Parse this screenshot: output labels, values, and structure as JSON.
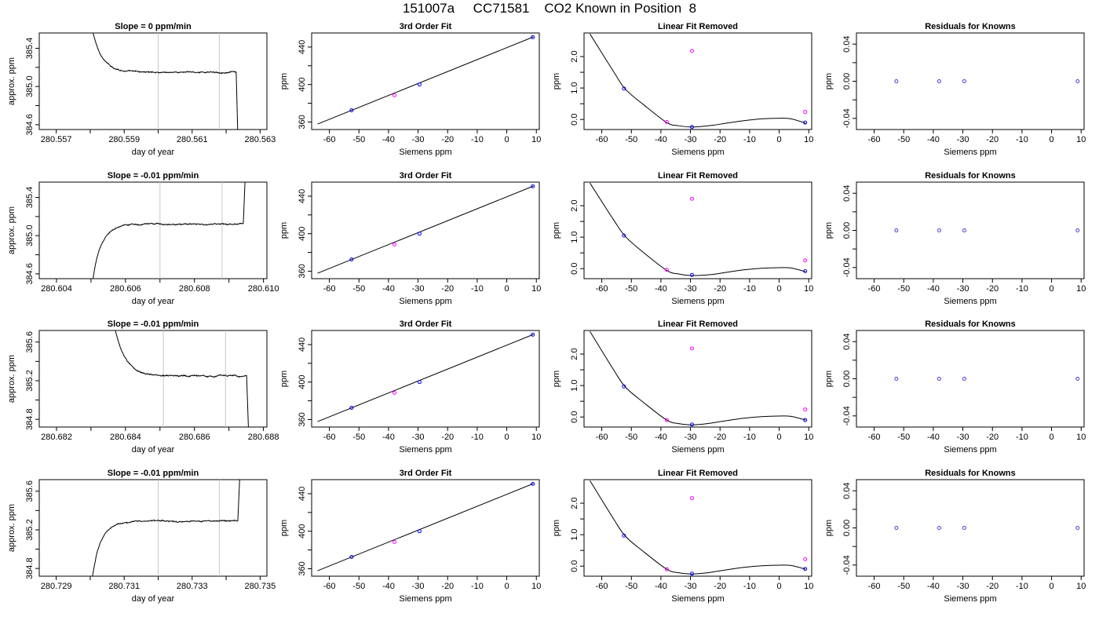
{
  "page_title": "151007a     CC71581    CO2 Known in Position  8",
  "colors": {
    "axis": "#000000",
    "curve": "#000000",
    "window_lines": "#c8c8c8",
    "known_points": "#0000ff",
    "other_points": "#ff00ff"
  },
  "chart_data": [
    {
      "row": 1,
      "type": "line",
      "title": "Slope =  0  ppm/min",
      "xlabel": "day of year",
      "ylabel": "approx. ppm",
      "xlim": [
        280.5565,
        280.5632
      ],
      "ylim": [
        384.55,
        385.56
      ],
      "xticks": [
        280.557,
        280.558,
        280.559,
        280.56,
        280.561,
        280.562,
        280.563
      ],
      "xtick_labels": [
        "280.557",
        "",
        "280.559",
        "",
        "280.561",
        "",
        "280.563"
      ],
      "yticks": [
        384.6,
        384.8,
        385.0,
        385.2,
        385.4
      ],
      "ytick_labels": [
        "384.6",
        "",
        "385.0",
        "",
        "385.4"
      ],
      "window_lines": [
        280.56,
        280.5618
      ],
      "trace": {
        "t_start": 280.558,
        "t_flat": 280.5589,
        "t_end": 280.5623,
        "t_drop": 280.56235,
        "start_value": 385.7,
        "level": 385.15,
        "end_value": 384.4,
        "noise": 0.012
      }
    },
    {
      "row": 1,
      "type": "scatter",
      "title": "3rd Order Fit",
      "xlabel": "Siemens ppm",
      "ylabel": "ppm",
      "xlim": [
        -66,
        11
      ],
      "ylim": [
        352,
        455
      ],
      "xticks": [
        -60,
        -50,
        -40,
        -30,
        -20,
        -10,
        0,
        10
      ],
      "yticks": [
        360,
        380,
        400,
        420,
        440
      ],
      "ytick_labels": [
        "360",
        "",
        "400",
        "",
        "440"
      ],
      "fit_line": {
        "x": [
          -64,
          9
        ],
        "y": [
          357.8,
          450.8
        ]
      },
      "points": [
        {
          "x": -52.5,
          "y": 372.5,
          "color": "#0000ff"
        },
        {
          "x": -38.0,
          "y": 388.5,
          "color": "#ff00ff"
        },
        {
          "x": -29.5,
          "y": 400.0,
          "color": "#0000ff"
        },
        {
          "x": 8.8,
          "y": 450.5,
          "color": "#0000ff"
        }
      ]
    },
    {
      "row": 1,
      "type": "scatter",
      "title": "Linear Fit Removed",
      "xlabel": "Siemens ppm",
      "ylabel": "ppm",
      "xlim": [
        -66,
        11
      ],
      "ylim": [
        -0.32,
        2.75
      ],
      "xticks": [
        -60,
        -50,
        -40,
        -30,
        -20,
        -10,
        0,
        10
      ],
      "yticks": [
        0.0,
        0.5,
        1.0,
        1.5,
        2.0
      ],
      "ytick_labels": [
        "0.0",
        "",
        "1.0",
        "",
        "2.0"
      ],
      "curve_x": [
        -64,
        -56,
        -52,
        -46,
        -38,
        -34,
        -30,
        -26,
        -22,
        -18,
        -12,
        -6,
        0,
        4,
        9
      ],
      "curve_y": [
        2.72,
        1.52,
        0.96,
        0.48,
        -0.1,
        -0.2,
        -0.24,
        -0.22,
        -0.18,
        -0.12,
        -0.04,
        0.02,
        0.04,
        0.02,
        -0.12
      ],
      "points": [
        {
          "x": -52.5,
          "y": 0.98,
          "color": "#0000ff"
        },
        {
          "x": -38.0,
          "y": -0.08,
          "color": "#ff00ff"
        },
        {
          "x": -29.5,
          "y": -0.24,
          "color": "#0000ff"
        },
        {
          "x": -29.5,
          "y": 2.18,
          "color": "#ff00ff"
        },
        {
          "x": 8.8,
          "y": 0.24,
          "color": "#ff00ff"
        },
        {
          "x": 8.8,
          "y": -0.1,
          "color": "#0000ff"
        }
      ]
    },
    {
      "row": 1,
      "type": "scatter",
      "title": "Residuals for Knowns",
      "xlabel": "Siemens ppm",
      "ylabel": "ppm",
      "xlim": [
        -66,
        11
      ],
      "ylim": [
        -0.052,
        0.052
      ],
      "xticks": [
        -60,
        -50,
        -40,
        -30,
        -20,
        -10,
        0,
        10
      ],
      "yticks": [
        -0.04,
        -0.02,
        0.0,
        0.02,
        0.04
      ],
      "ytick_labels": [
        "-0.04",
        "",
        "0.00",
        "",
        "0.04"
      ],
      "points": [
        {
          "x": -52.5,
          "y": 0.0,
          "color": "#4b3bd8"
        },
        {
          "x": -38.0,
          "y": 0.0,
          "color": "#4b3bd8"
        },
        {
          "x": -29.5,
          "y": 0.0,
          "color": "#4b3bd8"
        },
        {
          "x": 8.8,
          "y": 0.0,
          "color": "#4b3bd8"
        }
      ]
    },
    {
      "row": 2,
      "type": "line",
      "title": "Slope =  -0.01  ppm/min",
      "xlabel": "day of year",
      "ylabel": "approx. ppm",
      "xlim": [
        280.6035,
        280.6101
      ],
      "ylim": [
        384.55,
        385.56
      ],
      "xticks": [
        280.604,
        280.605,
        280.606,
        280.607,
        280.608,
        280.609,
        280.61
      ],
      "xtick_labels": [
        "280.604",
        "",
        "280.606",
        "",
        "280.608",
        "",
        "280.610"
      ],
      "yticks": [
        384.6,
        384.8,
        385.0,
        385.2,
        385.4
      ],
      "ytick_labels": [
        "384.6",
        "",
        "385.0",
        "",
        "385.4"
      ],
      "window_lines": [
        280.607,
        280.6088
      ],
      "trace": {
        "t_start": 280.605,
        "t_flat": 280.6058,
        "t_end": 280.60942,
        "t_drop": 280.60948,
        "start_value": 384.4,
        "level": 385.12,
        "end_value": 385.7,
        "noise": 0.012
      }
    },
    {
      "row": 2,
      "type": "scatter",
      "title": "3rd Order Fit",
      "xlabel": "Siemens ppm",
      "ylabel": "ppm",
      "xlim": [
        -66,
        11
      ],
      "ylim": [
        352,
        455
      ],
      "xticks": [
        -60,
        -50,
        -40,
        -30,
        -20,
        -10,
        0,
        10
      ],
      "yticks": [
        360,
        380,
        400,
        420,
        440
      ],
      "ytick_labels": [
        "360",
        "",
        "400",
        "",
        "440"
      ],
      "fit_line": {
        "x": [
          -64,
          9
        ],
        "y": [
          357.8,
          450.8
        ]
      },
      "points": [
        {
          "x": -52.5,
          "y": 372.5,
          "color": "#0000ff"
        },
        {
          "x": -38.0,
          "y": 388.5,
          "color": "#ff00ff"
        },
        {
          "x": -29.5,
          "y": 400.0,
          "color": "#0000ff"
        },
        {
          "x": 8.8,
          "y": 450.5,
          "color": "#0000ff"
        }
      ]
    },
    {
      "row": 2,
      "type": "scatter",
      "title": "Linear Fit Removed",
      "xlabel": "Siemens ppm",
      "ylabel": "ppm",
      "xlim": [
        -66,
        11
      ],
      "ylim": [
        -0.32,
        2.75
      ],
      "xticks": [
        -60,
        -50,
        -40,
        -30,
        -20,
        -10,
        0,
        10
      ],
      "yticks": [
        0.0,
        0.5,
        1.0,
        1.5,
        2.0
      ],
      "ytick_labels": [
        "0.0",
        "",
        "1.0",
        "",
        "2.0"
      ],
      "curve_x": [
        -64,
        -56,
        -52,
        -46,
        -38,
        -34,
        -30,
        -26,
        -22,
        -18,
        -12,
        -6,
        0,
        4,
        9
      ],
      "curve_y": [
        2.72,
        1.55,
        1.02,
        0.52,
        -0.06,
        -0.17,
        -0.22,
        -0.21,
        -0.18,
        -0.12,
        -0.04,
        0.01,
        0.03,
        0.02,
        -0.1
      ],
      "points": [
        {
          "x": -52.5,
          "y": 1.05,
          "color": "#0000ff"
        },
        {
          "x": -38.0,
          "y": -0.04,
          "color": "#ff00ff"
        },
        {
          "x": -29.5,
          "y": -0.2,
          "color": "#0000ff"
        },
        {
          "x": -29.5,
          "y": 2.22,
          "color": "#ff00ff"
        },
        {
          "x": 8.8,
          "y": 0.26,
          "color": "#ff00ff"
        },
        {
          "x": 8.8,
          "y": -0.08,
          "color": "#0000ff"
        }
      ]
    },
    {
      "row": 2,
      "type": "scatter",
      "title": "Residuals for Knowns",
      "xlabel": "Siemens ppm",
      "ylabel": "ppm",
      "xlim": [
        -66,
        11
      ],
      "ylim": [
        -0.052,
        0.052
      ],
      "xticks": [
        -60,
        -50,
        -40,
        -30,
        -20,
        -10,
        0,
        10
      ],
      "yticks": [
        -0.04,
        -0.02,
        0.0,
        0.02,
        0.04
      ],
      "ytick_labels": [
        "-0.04",
        "",
        "0.00",
        "",
        "0.04"
      ],
      "points": [
        {
          "x": -52.5,
          "y": 0.0,
          "color": "#4b3bd8"
        },
        {
          "x": -38.0,
          "y": 0.0,
          "color": "#4b3bd8"
        },
        {
          "x": -29.5,
          "y": 0.0,
          "color": "#4b3bd8"
        },
        {
          "x": 8.8,
          "y": 0.0,
          "color": "#4b3bd8"
        }
      ]
    },
    {
      "row": 3,
      "type": "line",
      "title": "Slope =  -0.01  ppm/min",
      "xlabel": "day of year",
      "ylabel": "approx. ppm",
      "xlim": [
        280.6815,
        280.6881
      ],
      "ylim": [
        384.72,
        385.72
      ],
      "xticks": [
        280.682,
        280.683,
        280.684,
        280.685,
        280.686,
        280.687,
        280.688
      ],
      "xtick_labels": [
        "280.682",
        "",
        "280.684",
        "",
        "280.686",
        "",
        "280.688"
      ],
      "yticks": [
        384.8,
        385.0,
        385.2,
        385.4,
        385.6
      ],
      "ytick_labels": [
        "384.8",
        "",
        "385.2",
        "",
        "385.6"
      ],
      "window_lines": [
        280.6851,
        280.6869
      ],
      "trace": {
        "t_start": 280.6836,
        "t_flat": 280.6846,
        "t_end": 280.68752,
        "t_drop": 280.68758,
        "start_value": 385.9,
        "level": 385.25,
        "end_value": 384.55,
        "noise": 0.013
      }
    },
    {
      "row": 3,
      "type": "scatter",
      "title": "3rd Order Fit",
      "xlabel": "Siemens ppm",
      "ylabel": "ppm",
      "xlim": [
        -66,
        11
      ],
      "ylim": [
        352,
        455
      ],
      "xticks": [
        -60,
        -50,
        -40,
        -30,
        -20,
        -10,
        0,
        10
      ],
      "yticks": [
        360,
        380,
        400,
        420,
        440
      ],
      "ytick_labels": [
        "360",
        "",
        "400",
        "",
        "440"
      ],
      "fit_line": {
        "x": [
          -64,
          9
        ],
        "y": [
          357.8,
          450.8
        ]
      },
      "points": [
        {
          "x": -52.5,
          "y": 372.5,
          "color": "#0000ff"
        },
        {
          "x": -38.0,
          "y": 388.5,
          "color": "#ff00ff"
        },
        {
          "x": -29.5,
          "y": 400.0,
          "color": "#0000ff"
        },
        {
          "x": 8.8,
          "y": 450.5,
          "color": "#0000ff"
        }
      ]
    },
    {
      "row": 3,
      "type": "scatter",
      "title": "Linear Fit Removed",
      "xlabel": "Siemens ppm",
      "ylabel": "ppm",
      "xlim": [
        -66,
        11
      ],
      "ylim": [
        -0.32,
        2.75
      ],
      "xticks": [
        -60,
        -50,
        -40,
        -30,
        -20,
        -10,
        0,
        10
      ],
      "yticks": [
        0.0,
        0.5,
        1.0,
        1.5,
        2.0
      ],
      "ytick_labels": [
        "0.0",
        "",
        "1.0",
        "",
        "2.0"
      ],
      "curve_x": [
        -64,
        -56,
        -52,
        -46,
        -38,
        -34,
        -30,
        -26,
        -22,
        -18,
        -12,
        -6,
        0,
        4,
        9
      ],
      "curve_y": [
        2.72,
        1.5,
        0.95,
        0.47,
        -0.1,
        -0.21,
        -0.25,
        -0.23,
        -0.18,
        -0.12,
        -0.04,
        0.01,
        0.03,
        0.02,
        -0.1
      ],
      "points": [
        {
          "x": -52.5,
          "y": 0.97,
          "color": "#0000ff"
        },
        {
          "x": -38.0,
          "y": -0.1,
          "color": "#ff00ff"
        },
        {
          "x": -29.5,
          "y": -0.24,
          "color": "#0000ff"
        },
        {
          "x": -29.5,
          "y": 2.18,
          "color": "#ff00ff"
        },
        {
          "x": 8.8,
          "y": 0.24,
          "color": "#ff00ff"
        },
        {
          "x": 8.8,
          "y": -0.1,
          "color": "#0000ff"
        }
      ]
    },
    {
      "row": 3,
      "type": "scatter",
      "title": "Residuals for Knowns",
      "xlabel": "Siemens ppm",
      "ylabel": "ppm",
      "xlim": [
        -66,
        11
      ],
      "ylim": [
        -0.052,
        0.052
      ],
      "xticks": [
        -60,
        -50,
        -40,
        -30,
        -20,
        -10,
        0,
        10
      ],
      "yticks": [
        -0.04,
        -0.02,
        0.0,
        0.02,
        0.04
      ],
      "ytick_labels": [
        "-0.04",
        "",
        "0.00",
        "",
        "0.04"
      ],
      "points": [
        {
          "x": -52.5,
          "y": 0.0,
          "color": "#4b3bd8"
        },
        {
          "x": -38.0,
          "y": 0.0,
          "color": "#4b3bd8"
        },
        {
          "x": -29.5,
          "y": 0.0,
          "color": "#4b3bd8"
        },
        {
          "x": 8.8,
          "y": 0.0,
          "color": "#4b3bd8"
        }
      ]
    },
    {
      "row": 4,
      "type": "line",
      "title": "Slope =  -0.01  ppm/min",
      "xlabel": "day of year",
      "ylabel": "approx. ppm",
      "xlim": [
        280.7285,
        280.7352
      ],
      "ylim": [
        384.72,
        385.72
      ],
      "xticks": [
        280.729,
        280.73,
        280.731,
        280.732,
        280.733,
        280.734,
        280.735
      ],
      "xtick_labels": [
        "280.729",
        "",
        "280.731",
        "",
        "280.733",
        "",
        "280.735"
      ],
      "yticks": [
        384.8,
        385.0,
        385.2,
        385.4,
        385.6
      ],
      "ytick_labels": [
        "384.8",
        "",
        "385.2",
        "",
        "385.6"
      ],
      "window_lines": [
        280.732,
        280.7338
      ],
      "trace": {
        "t_start": 280.73,
        "t_flat": 280.7308,
        "t_end": 280.73435,
        "t_drop": 280.73442,
        "start_value": 384.55,
        "level": 385.29,
        "end_value": 385.9,
        "noise": 0.012
      }
    },
    {
      "row": 4,
      "type": "scatter",
      "title": "3rd Order Fit",
      "xlabel": "Siemens ppm",
      "ylabel": "ppm",
      "xlim": [
        -66,
        11
      ],
      "ylim": [
        352,
        455
      ],
      "xticks": [
        -60,
        -50,
        -40,
        -30,
        -20,
        -10,
        0,
        10
      ],
      "yticks": [
        360,
        380,
        400,
        420,
        440
      ],
      "ytick_labels": [
        "360",
        "",
        "400",
        "",
        "440"
      ],
      "fit_line": {
        "x": [
          -64,
          9
        ],
        "y": [
          357.8,
          450.8
        ]
      },
      "points": [
        {
          "x": -52.5,
          "y": 372.5,
          "color": "#0000ff"
        },
        {
          "x": -38.0,
          "y": 388.5,
          "color": "#ff00ff"
        },
        {
          "x": -29.5,
          "y": 400.0,
          "color": "#0000ff"
        },
        {
          "x": 8.8,
          "y": 450.5,
          "color": "#0000ff"
        }
      ]
    },
    {
      "row": 4,
      "type": "scatter",
      "title": "Linear Fit Removed",
      "xlabel": "Siemens ppm",
      "ylabel": "ppm",
      "xlim": [
        -66,
        11
      ],
      "ylim": [
        -0.32,
        2.75
      ],
      "xticks": [
        -60,
        -50,
        -40,
        -30,
        -20,
        -10,
        0,
        10
      ],
      "yticks": [
        0.0,
        0.5,
        1.0,
        1.5,
        2.0
      ],
      "ytick_labels": [
        "0.0",
        "",
        "1.0",
        "",
        "2.0"
      ],
      "curve_x": [
        -64,
        -56,
        -52,
        -46,
        -38,
        -34,
        -30,
        -26,
        -22,
        -18,
        -12,
        -6,
        0,
        4,
        9
      ],
      "curve_y": [
        2.72,
        1.5,
        0.95,
        0.47,
        -0.1,
        -0.21,
        -0.25,
        -0.23,
        -0.18,
        -0.12,
        -0.04,
        0.01,
        0.03,
        0.02,
        -0.1
      ],
      "points": [
        {
          "x": -52.5,
          "y": 0.97,
          "color": "#0000ff"
        },
        {
          "x": -38.0,
          "y": -0.1,
          "color": "#ff00ff"
        },
        {
          "x": -29.5,
          "y": -0.24,
          "color": "#0000ff"
        },
        {
          "x": -29.5,
          "y": 2.16,
          "color": "#ff00ff"
        },
        {
          "x": 8.8,
          "y": 0.22,
          "color": "#ff00ff"
        },
        {
          "x": 8.8,
          "y": -0.09,
          "color": "#0000ff"
        }
      ]
    },
    {
      "row": 4,
      "type": "scatter",
      "title": "Residuals for Knowns",
      "xlabel": "Siemens ppm",
      "ylabel": "ppm",
      "xlim": [
        -66,
        11
      ],
      "ylim": [
        -0.052,
        0.052
      ],
      "xticks": [
        -60,
        -50,
        -40,
        -30,
        -20,
        -10,
        0,
        10
      ],
      "yticks": [
        -0.04,
        -0.02,
        0.0,
        0.02,
        0.04
      ],
      "ytick_labels": [
        "-0.04",
        "",
        "0.00",
        "",
        "0.04"
      ],
      "points": [
        {
          "x": -52.5,
          "y": 0.0,
          "color": "#4b3bd8"
        },
        {
          "x": -38.0,
          "y": 0.0,
          "color": "#4b3bd8"
        },
        {
          "x": -29.5,
          "y": 0.0,
          "color": "#4b3bd8"
        },
        {
          "x": 8.8,
          "y": 0.0,
          "color": "#4b3bd8"
        }
      ]
    }
  ]
}
